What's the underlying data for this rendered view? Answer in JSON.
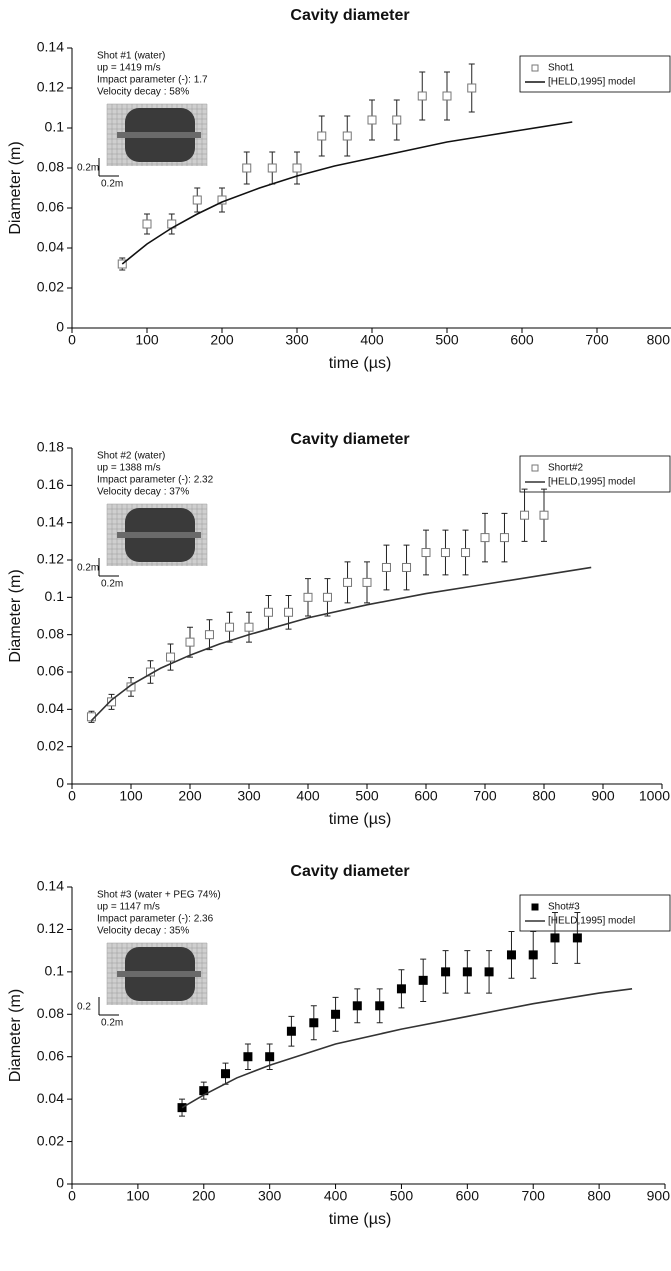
{
  "chart_data": [
    {
      "type": "line",
      "title": "Cavity diameter",
      "x_label": "time (µs)",
      "y_label": "Diameter (m)",
      "xlim": [
        0,
        800
      ],
      "xticks": [
        0,
        100,
        200,
        300,
        400,
        500,
        600,
        700,
        800
      ],
      "ylim": [
        0,
        0.14
      ],
      "yticks": [
        0,
        0.02,
        0.04,
        0.06,
        0.08,
        0.1,
        0.12,
        0.14
      ],
      "annotation": [
        "Shot #1 (water)",
        "up = 1419 m/s",
        "Impact parameter (-): 1.7",
        "Velocity decay : 58%"
      ],
      "inset_labels": [
        "0.2m",
        "0.2m"
      ],
      "legend": "upper right",
      "series": [
        {
          "name": "Shot1",
          "type": "scatter",
          "marker": "open-square",
          "color": "#777777",
          "x": [
            67,
            100,
            133,
            167,
            200,
            233,
            267,
            300,
            333,
            367,
            400,
            433,
            467,
            500,
            533
          ],
          "values": [
            0.032,
            0.052,
            0.052,
            0.064,
            0.064,
            0.08,
            0.08,
            0.08,
            0.096,
            0.096,
            0.104,
            0.104,
            0.116,
            0.116,
            0.12
          ],
          "errors": [
            0.003,
            0.005,
            0.005,
            0.006,
            0.006,
            0.008,
            0.008,
            0.008,
            0.01,
            0.01,
            0.01,
            0.01,
            0.012,
            0.012,
            0.012
          ]
        },
        {
          "name": "[HELD,1995] model",
          "type": "line",
          "color": "#111111",
          "x": [
            67,
            100,
            133,
            167,
            200,
            250,
            300,
            350,
            400,
            450,
            500,
            550,
            600,
            667
          ],
          "values": [
            0.032,
            0.042,
            0.05,
            0.057,
            0.063,
            0.07,
            0.076,
            0.081,
            0.085,
            0.089,
            0.093,
            0.096,
            0.099,
            0.103
          ]
        }
      ]
    },
    {
      "type": "line",
      "title": "Cavity diameter",
      "x_label": "time (µs)",
      "y_label": "Diameter (m)",
      "xlim": [
        0,
        1000
      ],
      "xticks": [
        0,
        100,
        200,
        300,
        400,
        500,
        600,
        700,
        800,
        900,
        1000
      ],
      "ylim": [
        0,
        0.18
      ],
      "yticks": [
        0,
        0.02,
        0.04,
        0.06,
        0.08,
        0.1,
        0.12,
        0.14,
        0.16,
        0.18
      ],
      "annotation": [
        "Shot #2 (water)",
        "up = 1388 m/s",
        "Impact parameter (-): 2.32",
        "Velocity decay : 37%"
      ],
      "inset_labels": [
        "0.2m",
        "0.2m"
      ],
      "legend": "upper right",
      "series": [
        {
          "name": "Short#2",
          "type": "scatter",
          "marker": "open-square",
          "color": "#777777",
          "x": [
            33,
            67,
            100,
            133,
            167,
            200,
            233,
            267,
            300,
            333,
            367,
            400,
            433,
            467,
            500,
            533,
            567,
            600,
            633,
            667,
            700,
            733,
            767,
            800
          ],
          "values": [
            0.036,
            0.044,
            0.052,
            0.06,
            0.068,
            0.076,
            0.08,
            0.084,
            0.084,
            0.092,
            0.092,
            0.1,
            0.1,
            0.108,
            0.108,
            0.116,
            0.116,
            0.124,
            0.124,
            0.124,
            0.132,
            0.132,
            0.144,
            0.144
          ],
          "errors": [
            0.003,
            0.004,
            0.005,
            0.006,
            0.007,
            0.008,
            0.008,
            0.008,
            0.008,
            0.009,
            0.009,
            0.01,
            0.01,
            0.011,
            0.011,
            0.012,
            0.012,
            0.012,
            0.012,
            0.012,
            0.013,
            0.013,
            0.014,
            0.014
          ]
        },
        {
          "name": "[HELD,1995] model",
          "type": "line",
          "color": "#333333",
          "x": [
            33,
            67,
            100,
            150,
            200,
            250,
            300,
            400,
            500,
            600,
            700,
            800,
            880
          ],
          "values": [
            0.034,
            0.045,
            0.053,
            0.062,
            0.069,
            0.075,
            0.08,
            0.089,
            0.096,
            0.102,
            0.107,
            0.112,
            0.116
          ]
        }
      ]
    },
    {
      "type": "line",
      "title": "Cavity diameter",
      "x_label": "time (µs)",
      "y_label": "Diameter (m)",
      "xlim": [
        0,
        900
      ],
      "xticks": [
        0,
        100,
        200,
        300,
        400,
        500,
        600,
        700,
        800,
        900
      ],
      "ylim": [
        0,
        0.14
      ],
      "yticks": [
        0,
        0.02,
        0.04,
        0.06,
        0.08,
        0.1,
        0.12,
        0.14
      ],
      "annotation": [
        "Shot #3 (water + PEG 74%)",
        "up = 1147 m/s",
        "Impact parameter (-): 2.36",
        "Velocity decay : 35%"
      ],
      "inset_labels": [
        "0.2",
        "0.2m"
      ],
      "legend": "upper right",
      "series": [
        {
          "name": "Shot#3",
          "type": "scatter",
          "marker": "filled-square",
          "color": "#000000",
          "x": [
            167,
            200,
            233,
            267,
            300,
            333,
            367,
            400,
            433,
            467,
            500,
            533,
            567,
            600,
            633,
            667,
            700,
            733,
            767
          ],
          "values": [
            0.036,
            0.044,
            0.052,
            0.06,
            0.06,
            0.072,
            0.076,
            0.08,
            0.084,
            0.084,
            0.092,
            0.096,
            0.1,
            0.1,
            0.1,
            0.108,
            0.108,
            0.116,
            0.116
          ],
          "errors": [
            0.004,
            0.004,
            0.005,
            0.006,
            0.006,
            0.007,
            0.008,
            0.008,
            0.008,
            0.008,
            0.009,
            0.01,
            0.01,
            0.01,
            0.01,
            0.011,
            0.011,
            0.012,
            0.012
          ]
        },
        {
          "name": "[HELD,1995] model",
          "type": "line",
          "color": "#333333",
          "x": [
            167,
            200,
            250,
            300,
            350,
            400,
            500,
            600,
            700,
            800,
            850
          ],
          "values": [
            0.036,
            0.042,
            0.05,
            0.056,
            0.061,
            0.066,
            0.073,
            0.079,
            0.085,
            0.09,
            0.092
          ]
        }
      ]
    }
  ]
}
